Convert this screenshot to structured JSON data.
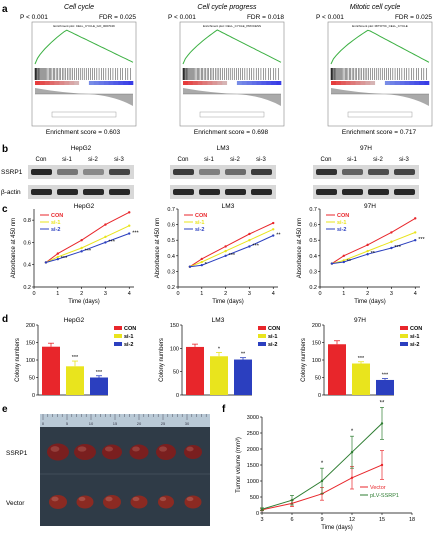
{
  "panel_labels": [
    "a",
    "b",
    "c",
    "d",
    "e",
    "f"
  ],
  "gsea": [
    {
      "title": "Cell cycle",
      "p": "P < 0.001",
      "fdr": "FDR = 0.025",
      "plot_title": "Enrichment plot: CELL_CYCLE_GO_0007049",
      "es": "Enrichment score = 0.603"
    },
    {
      "title": "Cell cycle progress",
      "p": "P < 0.001",
      "fdr": "FDR = 0.018",
      "plot_title": "Enrichment plot: CELL_CYCLE_PROCESS",
      "es": "Enrichment score = 0.698"
    },
    {
      "title": "Mitotic cell cycle",
      "p": "P < 0.001",
      "fdr": "FDR = 0.025",
      "plot_title": "Enrichment plot: MITOTIC_CELL_CYCLE",
      "es": "Enrichment score = 0.717"
    }
  ],
  "western": {
    "panels": [
      {
        "cell": "HepG2",
        "lanes": [
          "Con",
          "si-1",
          "si-2",
          "si-3"
        ]
      },
      {
        "cell": "LM3",
        "lanes": [
          "Con",
          "si-1",
          "si-2",
          "si-3"
        ]
      },
      {
        "cell": "97H",
        "lanes": [
          "Con",
          "si-1",
          "si-2",
          "si-3"
        ]
      }
    ],
    "rows": [
      "SSRP1",
      "β-actin"
    ]
  },
  "colors": {
    "con": "#e8262b",
    "si1": "#e9e41d",
    "si2": "#2b3fbf",
    "vector": "#e8262b",
    "plv": "#2e7d32"
  },
  "chart_data": [
    {
      "type": "line",
      "title": "HepG2",
      "xlabel": "Time (days)",
      "ylabel": "Absorbance at 450 nm",
      "x": [
        0.5,
        1,
        2,
        3,
        4
      ],
      "ylim": [
        0.2,
        0.9
      ],
      "xticks": [
        0,
        1,
        2,
        3,
        4
      ],
      "series": [
        {
          "name": "CON",
          "values": [
            0.42,
            0.5,
            0.62,
            0.76,
            0.87
          ]
        },
        {
          "name": "si-1",
          "values": [
            0.42,
            0.47,
            0.55,
            0.65,
            0.75
          ]
        },
        {
          "name": "si-2",
          "values": [
            0.42,
            0.45,
            0.52,
            0.6,
            0.68
          ]
        }
      ],
      "annotations": [
        "***",
        "***",
        "***",
        "***",
        "***"
      ]
    },
    {
      "type": "line",
      "title": "LM3",
      "xlabel": "Time (days)",
      "ylabel": "Absorbance at 450 nm",
      "x": [
        0.5,
        1,
        2,
        3,
        4
      ],
      "ylim": [
        0.2,
        0.7
      ],
      "xticks": [
        0,
        1,
        2,
        3,
        4
      ],
      "series": [
        {
          "name": "CON",
          "values": [
            0.33,
            0.38,
            0.46,
            0.54,
            0.61
          ]
        },
        {
          "name": "si-1",
          "values": [
            0.33,
            0.36,
            0.43,
            0.5,
            0.57
          ]
        },
        {
          "name": "si-2",
          "values": [
            0.33,
            0.34,
            0.4,
            0.46,
            0.53
          ]
        }
      ],
      "annotations": [
        "*",
        "*",
        "***",
        "***",
        "**"
      ]
    },
    {
      "type": "line",
      "title": "97H",
      "xlabel": "Time (days)",
      "ylabel": "Absorbance at 450 nm",
      "x": [
        0.5,
        1,
        2,
        3,
        4
      ],
      "ylim": [
        0.2,
        0.7
      ],
      "xticks": [
        0,
        1,
        2,
        3,
        4
      ],
      "series": [
        {
          "name": "CON",
          "values": [
            0.35,
            0.4,
            0.47,
            0.55,
            0.64
          ]
        },
        {
          "name": "si-1",
          "values": [
            0.35,
            0.37,
            0.43,
            0.49,
            0.55
          ]
        },
        {
          "name": "si-2",
          "values": [
            0.35,
            0.36,
            0.41,
            0.45,
            0.5
          ]
        }
      ],
      "annotations": [
        "***",
        "**",
        "**",
        "***",
        "***"
      ]
    },
    {
      "type": "bar",
      "title": "HepG2",
      "ylabel": "Colony numbers",
      "categories": [
        "CON",
        "si-1",
        "si-2"
      ],
      "values": [
        138,
        82,
        50
      ],
      "errors": [
        10,
        15,
        5
      ],
      "ylim": [
        0,
        200
      ],
      "yticks": [
        0,
        50,
        100,
        150,
        200
      ],
      "annotations": [
        "",
        "***",
        "***"
      ]
    },
    {
      "type": "bar",
      "title": "LM3",
      "ylabel": "Colony numbers",
      "categories": [
        "CON",
        "si-1",
        "si-2"
      ],
      "values": [
        103,
        83,
        76
      ],
      "errors": [
        6,
        8,
        4
      ],
      "ylim": [
        0,
        150
      ],
      "yticks": [
        0,
        50,
        100,
        150
      ],
      "annotations": [
        "",
        "*",
        "**"
      ]
    },
    {
      "type": "bar",
      "title": "97H",
      "ylabel": "Colony numbers",
      "categories": [
        "CON",
        "si-1",
        "si-2"
      ],
      "values": [
        145,
        90,
        43
      ],
      "errors": [
        10,
        5,
        4
      ],
      "ylim": [
        0,
        200
      ],
      "yticks": [
        0,
        50,
        100,
        150,
        200
      ],
      "annotations": [
        "",
        "***",
        "***"
      ]
    },
    {
      "type": "line",
      "title": "",
      "xlabel": "Time (days)",
      "ylabel": "Tumor volume (mm³)",
      "x": [
        3,
        6,
        9,
        12,
        15
      ],
      "ylim": [
        0,
        3000
      ],
      "xlim": [
        3,
        18
      ],
      "xticks": [
        3,
        6,
        9,
        12,
        15,
        18
      ],
      "yticks": [
        0,
        500,
        1000,
        1500,
        2000,
        2500,
        3000
      ],
      "series": [
        {
          "name": "Vector",
          "values": [
            100,
            300,
            600,
            1100,
            1500
          ],
          "errors": [
            30,
            100,
            200,
            350,
            450
          ]
        },
        {
          "name": "pLV-SSRP1",
          "values": [
            120,
            400,
            1000,
            1900,
            2800
          ],
          "errors": [
            40,
            150,
            400,
            500,
            500
          ]
        }
      ],
      "annotations": [
        "",
        "",
        "*",
        "*",
        "**"
      ]
    }
  ],
  "photo": {
    "row_labels": [
      "SSRP1",
      "Vector"
    ]
  }
}
